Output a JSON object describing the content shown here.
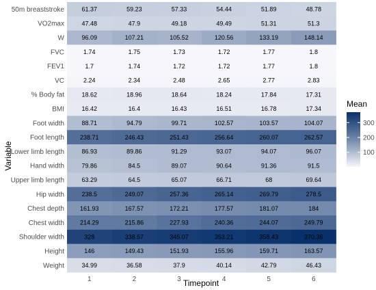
{
  "chart_data": {
    "type": "heatmap",
    "xlabel": "Timepoint",
    "ylabel": "Variable",
    "x_categories": [
      "1",
      "2",
      "3",
      "4",
      "5",
      "6"
    ],
    "y_categories": [
      "50m breaststroke",
      "VO2max",
      "W",
      "FVC",
      "FEV1",
      "VC",
      "% Body fat",
      "BMI",
      "Foot width",
      "Foot length",
      "Lower limb length",
      "Hand width",
      "Upper limb length",
      "Hip width",
      "Chest depth",
      "Chest width",
      "Shoulder width",
      "Height",
      "Weight"
    ],
    "values": [
      [
        "61.37",
        "59.23",
        "57.33",
        "54.44",
        "51.89",
        "48.78"
      ],
      [
        "47.48",
        "47.9",
        "49.18",
        "49.49",
        "51.31",
        "51.3"
      ],
      [
        "96.09",
        "107.21",
        "105.52",
        "120.56",
        "133.19",
        "148.14"
      ],
      [
        "1.74",
        "1.75",
        "1.73",
        "1.72",
        "1.77",
        "1.8"
      ],
      [
        "1.7",
        "1.74",
        "1.72",
        "1.72",
        "1.77",
        "1.8"
      ],
      [
        "2.24",
        "2.34",
        "2.48",
        "2.65",
        "2.77",
        "2.83"
      ],
      [
        "18.62",
        "18.96",
        "18.64",
        "18.24",
        "17.84",
        "17.31"
      ],
      [
        "16.42",
        "16.4",
        "16.43",
        "16.51",
        "16.78",
        "17.34"
      ],
      [
        "88.71",
        "94.79",
        "99.71",
        "102.57",
        "103.57",
        "104.07"
      ],
      [
        "238.71",
        "246.43",
        "251.43",
        "256.64",
        "260.07",
        "262.57"
      ],
      [
        "86.93",
        "89.86",
        "91.29",
        "93.07",
        "94.07",
        "96.07"
      ],
      [
        "79.86",
        "84.5",
        "89.07",
        "90.64",
        "91.36",
        "91.5"
      ],
      [
        "63.29",
        "64.5",
        "65.07",
        "66.71",
        "68",
        "69.64"
      ],
      [
        "238.5",
        "249.07",
        "257.36",
        "265.14",
        "269.79",
        "278.5"
      ],
      [
        "161.93",
        "167.57",
        "172.21",
        "177.57",
        "181.07",
        "184"
      ],
      [
        "214.29",
        "215.86",
        "227.93",
        "240.36",
        "244.07",
        "249.79"
      ],
      [
        "328",
        "338.57",
        "345.07",
        "353.21",
        "358.43",
        "370.36"
      ],
      [
        "146",
        "149.43",
        "151.93",
        "155.96",
        "159.71",
        "163.57"
      ],
      [
        "34.99",
        "36.58",
        "37.9",
        "40.14",
        "42.79",
        "46.43"
      ]
    ],
    "legend": {
      "title": "Mean",
      "ticks": [
        "100",
        "200",
        "300"
      ],
      "range": [
        1.7,
        370.36
      ],
      "low_color": "#f7f7fb",
      "high_color": "#08306b",
      "placement": "right"
    },
    "grid": true
  }
}
